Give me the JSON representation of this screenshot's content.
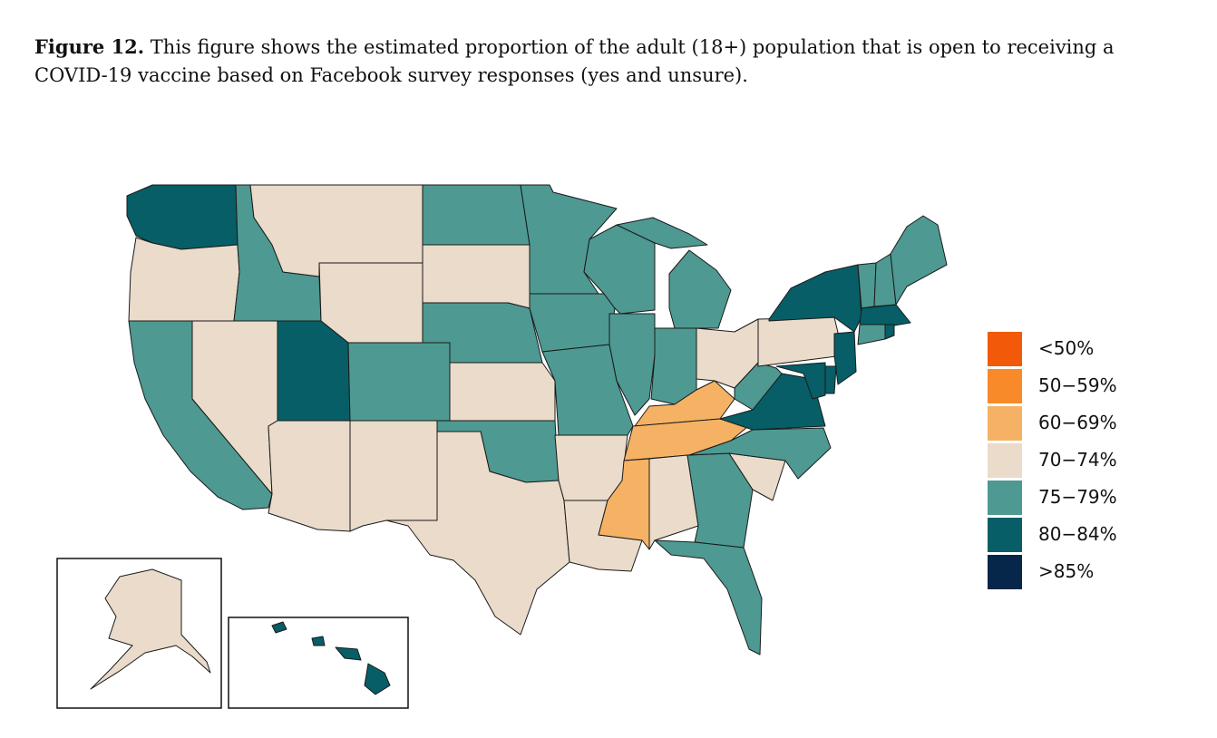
{
  "caption": {
    "label": "Figure 12.",
    "text": " This figure shows the estimated proportion of the adult (18+) population that is open to receiving a COVID-19 vaccine based on Facebook survey responses (yes and unsure)."
  },
  "legend": [
    {
      "label": "<50%",
      "color": "#F25A0A"
    },
    {
      "label": "50−59%",
      "color": "#F88A2A"
    },
    {
      "label": "60−69%",
      "color": "#F5B264"
    },
    {
      "label": "70−74%",
      "color": "#EADBCA"
    },
    {
      "label": "75−79%",
      "color": "#4E9992"
    },
    {
      "label": "80−84%",
      "color": "#075E67"
    },
    {
      "label": ">85%",
      "color": "#06264A"
    }
  ],
  "states": {
    "WA": "80-84",
    "OR": "70-74",
    "CA": "75-79",
    "ID": "75-79",
    "NV": "70-74",
    "MT": "70-74",
    "WY": "70-74",
    "UT": "80-84",
    "AZ": "70-74",
    "CO": "75-79",
    "NM": "70-74",
    "ND": "75-79",
    "SD": "70-74",
    "NE": "75-79",
    "KS": "70-74",
    "OK": "75-79",
    "TX": "70-74",
    "MN": "75-79",
    "IA": "75-79",
    "MO": "75-79",
    "AR": "70-74",
    "LA": "70-74",
    "WI": "75-79",
    "IL": "75-79",
    "MI": "75-79",
    "IN": "75-79",
    "OH": "70-74",
    "KY": "60-69",
    "TN": "60-69",
    "MS": "60-69",
    "AL": "70-74",
    "GA": "75-79",
    "FL": "75-79",
    "SC": "70-74",
    "NC": "75-79",
    "VA": "80-84",
    "WV": "75-79",
    "PA": "70-74",
    "NY": "80-84",
    "VT": "75-79",
    "NH": "75-79",
    "ME": "75-79",
    "MA": "80-84",
    "CT": "75-79",
    "RI": "80-84",
    "NJ": "80-84",
    "DE": "80-84",
    "MD": "80-84",
    "AK": "70-74",
    "HI": "80-84"
  }
}
